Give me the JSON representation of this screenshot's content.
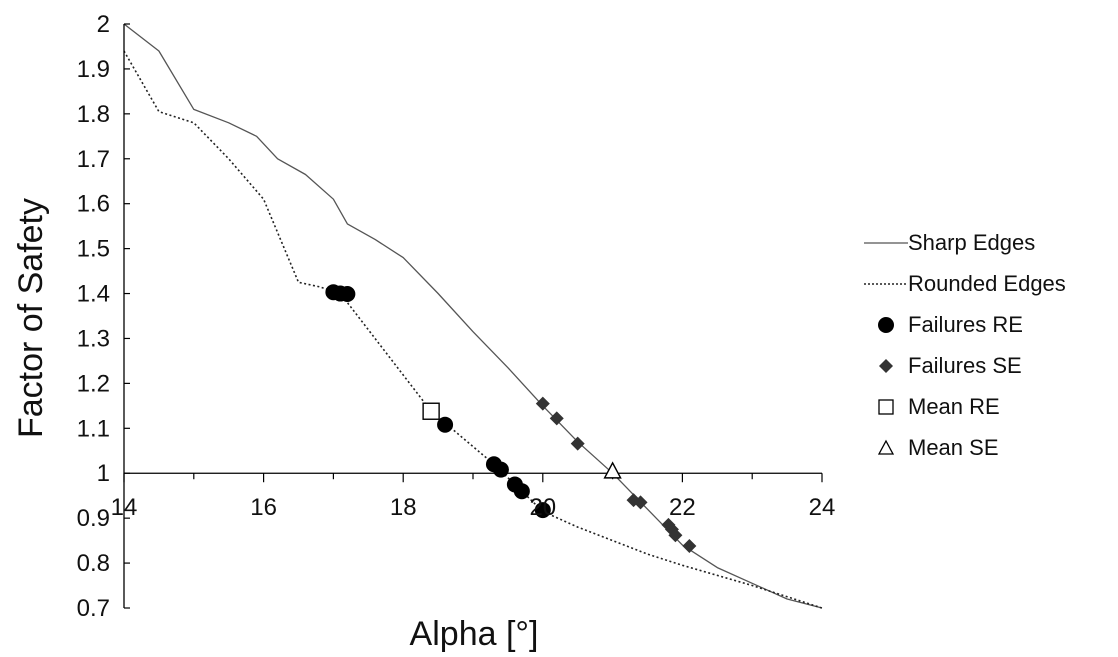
{
  "chart_data": {
    "type": "line",
    "title": "",
    "xlabel": "Alpha [°]",
    "ylabel": "Factor of Safety",
    "xlim": [
      14,
      24
    ],
    "ylim": [
      0.7,
      2.0
    ],
    "x_ticks": [
      "14",
      "16",
      "18",
      "20",
      "22",
      "24"
    ],
    "y_ticks": [
      "0.7",
      "0.8",
      "0.9",
      "1",
      "1.1",
      "1.2",
      "1.3",
      "1.4",
      "1.5",
      "1.6",
      "1.7",
      "1.8",
      "1.9",
      "2"
    ],
    "x_axis_crosses_y": 1.0,
    "grid": false,
    "legend_position": "right",
    "series": [
      {
        "name": "Sharp Edges",
        "kind": "line",
        "style": "solid",
        "color": "#555555",
        "points": [
          [
            14,
            2.0
          ],
          [
            14.5,
            1.94
          ],
          [
            15,
            1.81
          ],
          [
            15.5,
            1.78
          ],
          [
            15.9,
            1.75
          ],
          [
            16.2,
            1.7
          ],
          [
            16.6,
            1.665
          ],
          [
            17,
            1.61
          ],
          [
            17.2,
            1.555
          ],
          [
            17.6,
            1.52
          ],
          [
            18,
            1.48
          ],
          [
            18.5,
            1.4
          ],
          [
            19,
            1.315
          ],
          [
            19.5,
            1.235
          ],
          [
            20,
            1.15
          ],
          [
            20.5,
            1.07
          ],
          [
            21,
            1.0
          ],
          [
            21.5,
            0.92
          ],
          [
            22,
            0.84
          ],
          [
            22.5,
            0.79
          ],
          [
            23,
            0.755
          ],
          [
            23.5,
            0.72
          ],
          [
            24,
            0.7
          ]
        ]
      },
      {
        "name": "Rounded Edges",
        "kind": "line",
        "style": "dotted",
        "color": "#222222",
        "points": [
          [
            14,
            1.94
          ],
          [
            14.5,
            1.805
          ],
          [
            15,
            1.78
          ],
          [
            15.5,
            1.7
          ],
          [
            16,
            1.61
          ],
          [
            16.5,
            1.425
          ],
          [
            16.8,
            1.415
          ],
          [
            17.1,
            1.4
          ],
          [
            18.4,
            1.138
          ],
          [
            19.3,
            1.02
          ],
          [
            20,
            0.915
          ],
          [
            20.5,
            0.88
          ],
          [
            21,
            0.85
          ],
          [
            21.5,
            0.82
          ],
          [
            22,
            0.795
          ],
          [
            23,
            0.75
          ],
          [
            24,
            0.7
          ]
        ]
      },
      {
        "name": "Failures RE",
        "kind": "marker",
        "marker": "circle",
        "color": "#000000",
        "points": [
          [
            17.0,
            1.403
          ],
          [
            17.1,
            1.4
          ],
          [
            17.2,
            1.399
          ],
          [
            18.6,
            1.108
          ],
          [
            19.3,
            1.02
          ],
          [
            19.4,
            1.008
          ],
          [
            19.6,
            0.975
          ],
          [
            19.7,
            0.96
          ],
          [
            20.0,
            0.918
          ]
        ]
      },
      {
        "name": "Failures SE",
        "kind": "marker",
        "marker": "diamond",
        "color": "#333333",
        "points": [
          [
            20.0,
            1.155
          ],
          [
            20.2,
            1.122
          ],
          [
            20.5,
            1.066
          ],
          [
            21.3,
            0.94
          ],
          [
            21.4,
            0.935
          ],
          [
            21.8,
            0.885
          ],
          [
            21.85,
            0.875
          ],
          [
            21.9,
            0.862
          ],
          [
            22.1,
            0.838
          ]
        ]
      },
      {
        "name": "Mean RE",
        "kind": "marker",
        "marker": "square-open",
        "color": "#000000",
        "points": [
          [
            18.4,
            1.138
          ]
        ]
      },
      {
        "name": "Mean SE",
        "kind": "marker",
        "marker": "triangle-open",
        "color": "#000000",
        "points": [
          [
            21.0,
            1.003
          ]
        ]
      }
    ]
  }
}
